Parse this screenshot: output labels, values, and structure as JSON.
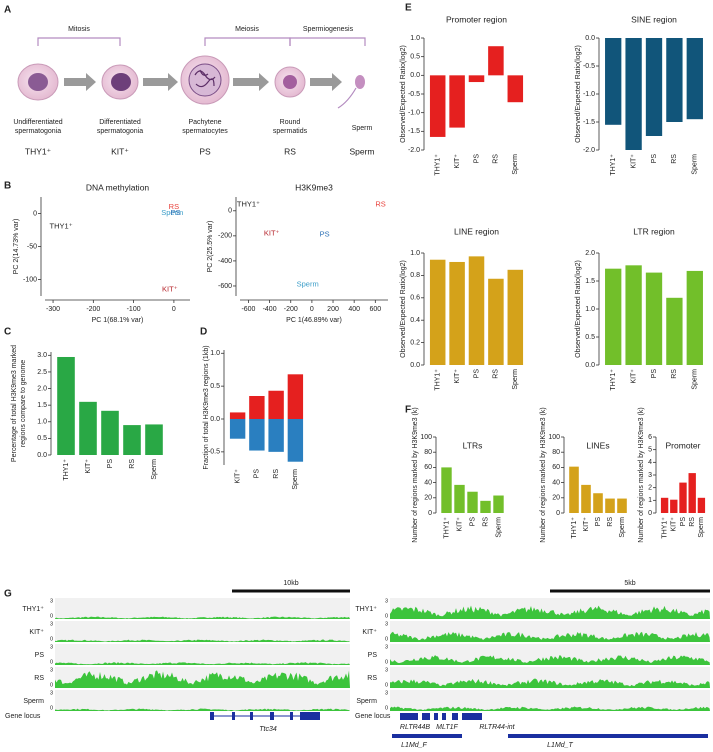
{
  "panel_labels": [
    "A",
    "B",
    "C",
    "D",
    "E",
    "F",
    "G"
  ],
  "diagram": {
    "phases": [
      "Mitosis",
      "Meiosis",
      "Spermiogenesis"
    ],
    "cells": [
      {
        "name": [
          "Undifferentiated",
          "spermatogonia"
        ],
        "marker": "THY1⁺"
      },
      {
        "name": [
          "Differentiated",
          "spermatogonia"
        ],
        "marker": "KIT⁺"
      },
      {
        "name": [
          "Pachytene",
          "spermatocytes"
        ],
        "marker": "PS"
      },
      {
        "name": [
          "Round",
          "spermatids"
        ],
        "marker": "RS"
      },
      {
        "name": [
          "Sperm"
        ],
        "marker": "Sperm"
      }
    ]
  },
  "chart_data": [
    {
      "type": "scatter",
      "title": "DNA methylation",
      "xlabel": "PC 1(68.1% var)",
      "ylabel": "PC 2(14.73% var)",
      "xlim": [
        -320,
        40
      ],
      "xticks": [
        -300,
        -200,
        -100,
        0
      ],
      "ylim": [
        -125,
        25
      ],
      "yticks": [
        -100,
        -50,
        0
      ],
      "series": [
        {
          "name": "THY1⁺",
          "color": "#222222",
          "x": [
            -280
          ],
          "values": [
            -20
          ]
        },
        {
          "name": "KIT⁺",
          "color": "#b5232a",
          "x": [
            -10
          ],
          "values": [
            -115
          ]
        },
        {
          "name": "RS",
          "color": "#e8403a",
          "x": [
            0
          ],
          "values": [
            10
          ]
        },
        {
          "name": "Sperm",
          "color": "#3b9dc8",
          "x": [
            -4
          ],
          "values": [
            1
          ]
        },
        {
          "name": "PS",
          "color": "#2a6fb5",
          "x": [
            4
          ],
          "values": [
            1
          ]
        }
      ]
    },
    {
      "type": "scatter",
      "title": "H3K9me3",
      "xlabel": "PC 1(46.89% var)",
      "ylabel": "PC 2(25.5% var)",
      "xlim": [
        -680,
        720
      ],
      "xticks": [
        -600,
        -400,
        -200,
        0,
        200,
        400,
        600
      ],
      "ylim": [
        -680,
        110
      ],
      "yticks": [
        -600,
        -400,
        -200,
        0
      ],
      "series": [
        {
          "name": "THY1⁺",
          "color": "#222222",
          "x": [
            -600
          ],
          "values": [
            50
          ]
        },
        {
          "name": "RS",
          "color": "#e8403a",
          "x": [
            650
          ],
          "values": [
            50
          ]
        },
        {
          "name": "KIT⁺",
          "color": "#b5232a",
          "x": [
            -380
          ],
          "values": [
            -180
          ]
        },
        {
          "name": "PS",
          "color": "#2a6fb5",
          "x": [
            120
          ],
          "values": [
            -190
          ]
        },
        {
          "name": "Sperm",
          "color": "#3b9dc8",
          "x": [
            -40
          ],
          "values": [
            -590
          ]
        }
      ]
    },
    {
      "type": "bar",
      "ylabel": [
        "Percentage of total H3K9me3 marked",
        "regions compare to genome"
      ],
      "categories": [
        "THY1⁺",
        "KIT⁺",
        "PS",
        "RS",
        "Sperm"
      ],
      "values": [
        2.95,
        1.6,
        1.33,
        0.9,
        0.92
      ],
      "color": "#29a845",
      "ylim": [
        0,
        3.1
      ],
      "yticks": [
        {
          "value": 0,
          "label": "0.0"
        },
        0.5,
        {
          "value": 1,
          "label": "1.0"
        },
        1.5,
        {
          "value": 2,
          "label": "2.0"
        },
        2.5,
        {
          "value": 3,
          "label": "3.0"
        }
      ]
    },
    {
      "type": "bar",
      "ylabel": "Fraction of total H3K9me3 regions (1kb)",
      "categories": [
        "KIT⁺",
        "PS",
        "RS",
        "Sperm"
      ],
      "series": [
        {
          "color": "#e5201f",
          "values": [
            0.1,
            0.35,
            0.43,
            0.68
          ]
        },
        {
          "color": "#2a7fc0",
          "values": [
            -0.3,
            -0.48,
            -0.5,
            -0.65
          ]
        }
      ],
      "ylim": [
        -0.7,
        1.05
      ],
      "yticks": [
        -0.5,
        {
          "value": 0,
          "label": "0.0"
        },
        0.5,
        {
          "value": 1,
          "label": "1.0"
        }
      ]
    },
    {
      "type": "bar",
      "title": "Promoter region",
      "ylabel": "Observed/Expected Ratio(log2)",
      "categories": [
        "THY1⁺",
        "KIT⁺",
        "PS",
        "RS",
        "Sperm"
      ],
      "values": [
        -1.65,
        -1.4,
        -0.18,
        0.78,
        -0.72
      ],
      "color": "#e5201f",
      "ylim": [
        -2,
        1
      ],
      "yticks": [
        {
          "value": -2,
          "label": "-2.0"
        },
        -1.5,
        {
          "value": -1,
          "label": "-1.0"
        },
        -0.5,
        {
          "value": 0,
          "label": "0.0"
        },
        0.5,
        {
          "value": 1,
          "label": "1.0"
        }
      ]
    },
    {
      "type": "bar",
      "title": "SINE region",
      "ylabel": "Observed/Expected Ratio(log2)",
      "categories": [
        "THY1⁺",
        "KIT⁺",
        "PS",
        "RS",
        "Sperm"
      ],
      "values": [
        -1.55,
        -2.0,
        -1.75,
        -1.5,
        -1.45
      ],
      "color": "#11557a",
      "ylim": [
        -2,
        0
      ],
      "yticks": [
        {
          "value": -2,
          "label": "-2.0"
        },
        -1.5,
        {
          "value": -1,
          "label": "-1.0"
        },
        -0.5,
        {
          "value": 0,
          "label": "0.0"
        }
      ]
    },
    {
      "type": "bar",
      "title": "LINE region",
      "ylabel": "Observed/Expected Ratio(log2)",
      "categories": [
        "THY1⁺",
        "KIT⁺",
        "PS",
        "RS",
        "Sperm"
      ],
      "values": [
        0.94,
        0.92,
        0.97,
        0.77,
        0.85
      ],
      "color": "#d4a21a",
      "ylim": [
        0,
        1
      ],
      "yticks": [
        {
          "value": 0,
          "label": "0.0"
        },
        0.2,
        0.4,
        0.6,
        0.8,
        {
          "value": 1,
          "label": "1.0"
        }
      ]
    },
    {
      "type": "bar",
      "title": "LTR region",
      "ylabel": "Observed/Expected Ratio(log2)",
      "categories": [
        "THY1⁺",
        "KIT⁺",
        "PS",
        "RS",
        "Sperm"
      ],
      "values": [
        1.72,
        1.78,
        1.65,
        1.2,
        1.68
      ],
      "color": "#72bf2a",
      "ylim": [
        0,
        2
      ],
      "yticks": [
        {
          "value": 0,
          "label": "0.0"
        },
        0.5,
        {
          "value": 1,
          "label": "1.0"
        },
        1.5,
        {
          "value": 2,
          "label": "2.0"
        }
      ]
    },
    {
      "type": "bar",
      "title": "LTRs",
      "ylabel": "Number of regions marked by H3K9me3 (k)",
      "categories": [
        "THY1⁺",
        "KIT⁺",
        "PS",
        "RS",
        "Sperm"
      ],
      "values": [
        60,
        37,
        28,
        16,
        23
      ],
      "color": "#72bf2a",
      "ylim": [
        0,
        100
      ],
      "yticks": [
        0,
        20,
        40,
        60,
        80,
        100
      ]
    },
    {
      "type": "bar",
      "title": "LINEs",
      "ylabel": "Number of regions marked by H3K9me3 (k)",
      "categories": [
        "THY1⁺",
        "KIT⁺",
        "PS",
        "RS",
        "Sperm"
      ],
      "values": [
        61,
        37,
        26,
        19,
        19
      ],
      "color": "#d4a21a",
      "ylim": [
        0,
        100
      ],
      "yticks": [
        0,
        20,
        40,
        60,
        80,
        100
      ]
    },
    {
      "type": "bar",
      "title": "Promoter",
      "ylabel": "Number of regions marked by H3K9me3 (k)",
      "categories": [
        "THY1⁺",
        "KIT⁺",
        "PS",
        "RS",
        "Sperm"
      ],
      "values": [
        1.2,
        1.05,
        2.4,
        3.15,
        1.2
      ],
      "color": "#e5201f",
      "ylim": [
        0,
        6
      ],
      "yticks": [
        0,
        1,
        2,
        3,
        4,
        5,
        6
      ]
    }
  ],
  "tracks": {
    "samples": [
      "THY1⁺",
      "KIT⁺",
      "PS",
      "RS",
      "Sperm"
    ],
    "scale_max": "3",
    "scale_min": "0",
    "locus_label": "Gene locus",
    "left": {
      "scale_bar": "10kb",
      "genes": [
        "Ttc34"
      ]
    },
    "right": {
      "scale_bar": "5kb",
      "genes": [
        "RLTR44B",
        "MLT1F",
        "RLTR44-int"
      ],
      "repeats": [
        "L1Md_F",
        "L1Md_T"
      ]
    }
  }
}
